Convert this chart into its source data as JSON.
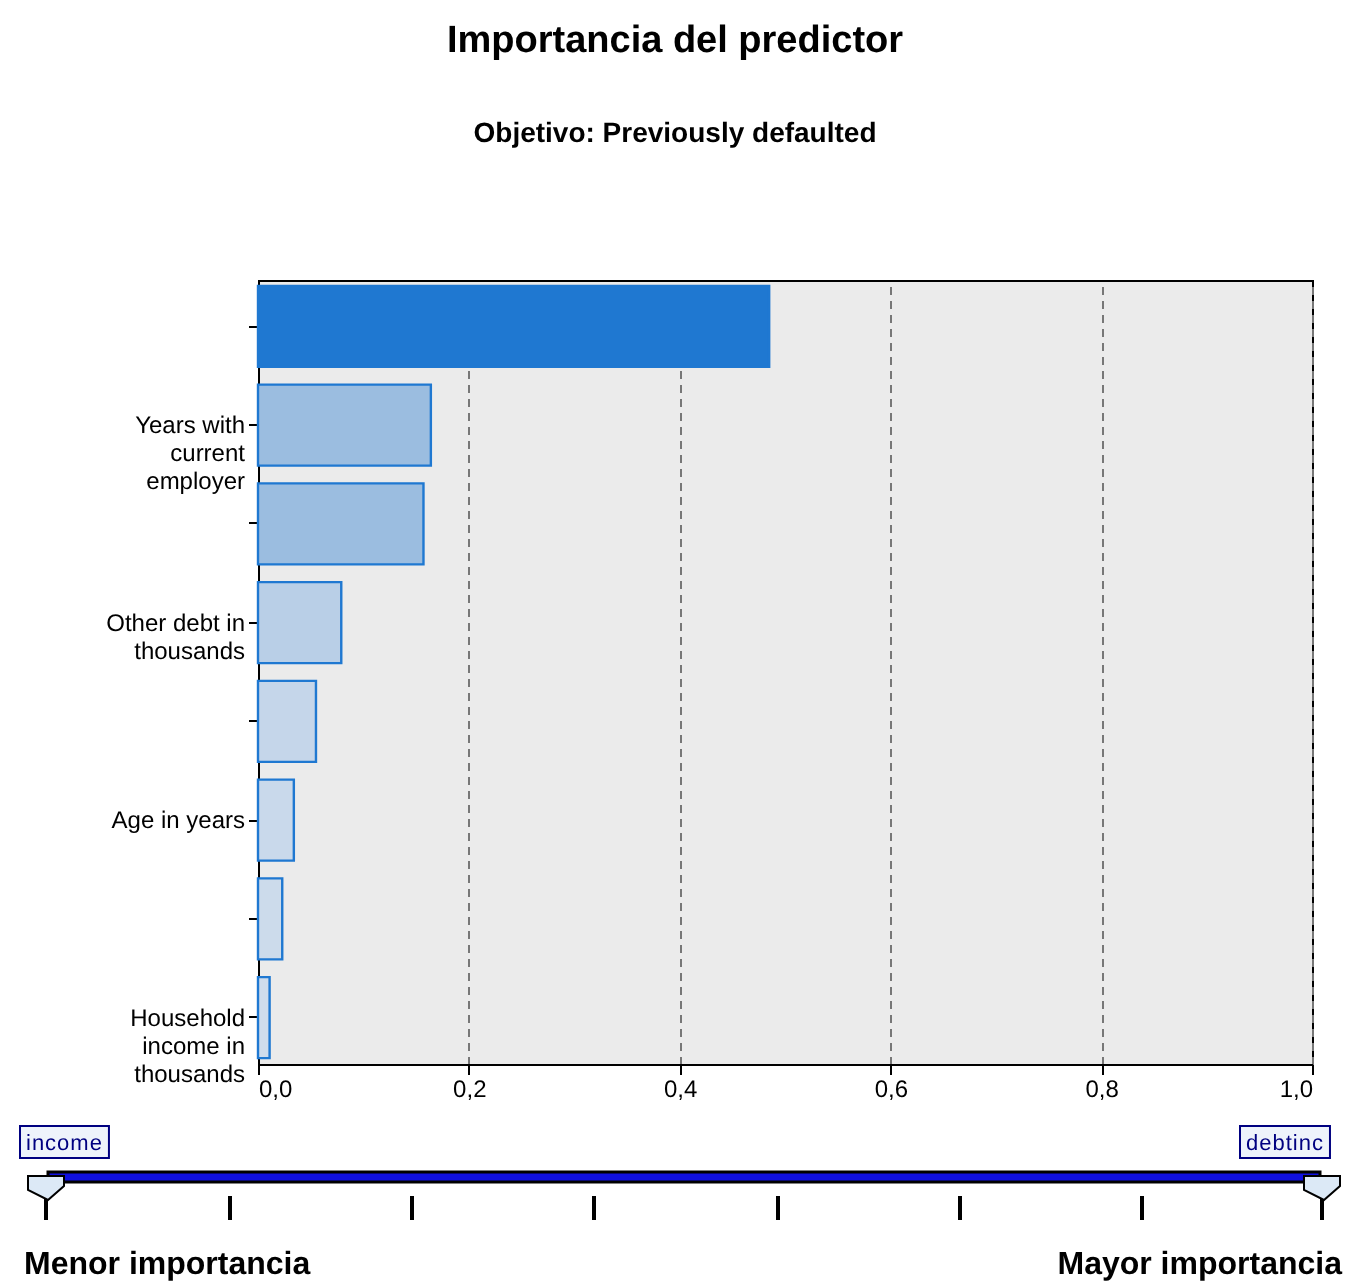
{
  "chart_data": {
    "type": "bar",
    "orientation": "horizontal",
    "title": "Importancia del predictor",
    "subtitle": "Objetivo: Previously defaulted",
    "categories": [
      null,
      "Years with current employer",
      null,
      "Other debt in thousands",
      null,
      "Age in years",
      null,
      "Household income in thousands"
    ],
    "values": [
      0.485,
      0.164,
      0.157,
      0.079,
      0.055,
      0.034,
      0.023,
      0.011
    ],
    "colors": [
      "#1f78d1",
      "#9bbde0",
      "#9bbde0",
      "#b9cfe7",
      "#c5d6ea",
      "#c9d9eb",
      "#ccdbeb",
      "#cfdcec"
    ],
    "xlim": [
      0,
      1
    ],
    "xticks": [
      {
        "value": 0,
        "label": "0,0"
      },
      {
        "value": 0.2,
        "label": "0,2"
      },
      {
        "value": 0.4,
        "label": "0,4"
      },
      {
        "value": 0.6,
        "label": "0,6"
      },
      {
        "value": 0.8,
        "label": "0,8"
      },
      {
        "value": 1,
        "label": "1,0"
      }
    ],
    "grid": "x",
    "annotations": [
      "income",
      "debtinc",
      "Menor importancia",
      "Mayor importancia"
    ]
  }
}
